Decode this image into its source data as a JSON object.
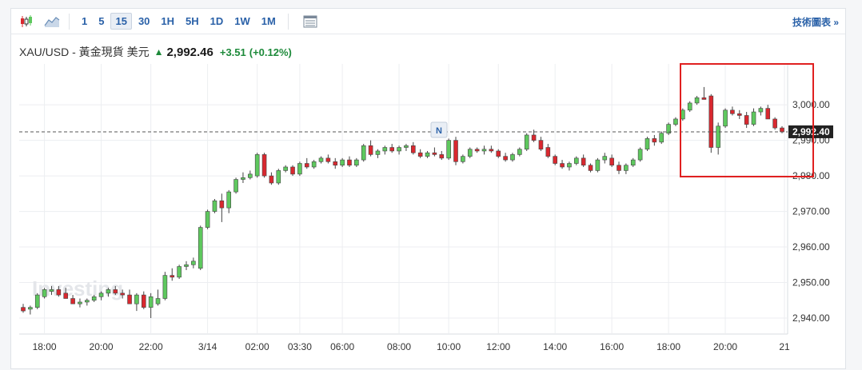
{
  "toolbar": {
    "timeframes": [
      "1",
      "5",
      "15",
      "30",
      "1H",
      "5H",
      "1D",
      "1W",
      "1M"
    ],
    "active_timeframe": "15",
    "tech_chart_link": "技術圖表 »"
  },
  "instrument": {
    "name": "XAU/USD - 黃金現貨 美元",
    "price": "2,992.46",
    "change": "+3.51",
    "change_pct": "(+0.12%)"
  },
  "watermark": "Investing",
  "news_marker": "N",
  "colors": {
    "up": "#5ec85e",
    "down": "#d9282f",
    "grid": "#eceef1",
    "highlight_box": "#e02020",
    "link": "#2a61a8",
    "positive": "#1d8a3a"
  },
  "chart_data": {
    "type": "candlestick",
    "title": "",
    "xlabel": "",
    "ylabel": "",
    "x_ticks": [
      "18:00",
      "20:00",
      "22:00",
      "3/14",
      "02:00",
      "03:30",
      "06:00",
      "08:00",
      "10:00",
      "12:00",
      "14:00",
      "16:00",
      "18:00",
      "20:00",
      "21"
    ],
    "y_ticks": [
      "2,940.00",
      "2,950.00",
      "2,960.00",
      "2,970.00",
      "2,980.00",
      "2,990.00",
      "3,000.00"
    ],
    "ylim": [
      2935.5,
      3011.5
    ],
    "last_price_label": "2,992.40",
    "last_price": 2992.4,
    "grid": true,
    "candles": [
      [
        2943,
        2944,
        2941.5,
        2942
      ],
      [
        2942.5,
        2943.5,
        2941,
        2943
      ],
      [
        2943,
        2947,
        2942.5,
        2946.5
      ],
      [
        2946,
        2948.5,
        2945.5,
        2948
      ],
      [
        2947.5,
        2949,
        2946.5,
        2948
      ],
      [
        2948,
        2949,
        2946,
        2946.5
      ],
      [
        2947,
        2948.5,
        2945.5,
        2945.5
      ],
      [
        2945.5,
        2946.5,
        2944,
        2944
      ],
      [
        2944,
        2945.5,
        2943,
        2944.5
      ],
      [
        2944.5,
        2945.5,
        2943.5,
        2945
      ],
      [
        2945,
        2946.5,
        2944.5,
        2946
      ],
      [
        2946,
        2947.5,
        2945,
        2947
      ],
      [
        2947,
        2948.5,
        2946,
        2948
      ],
      [
        2948,
        2949,
        2946.5,
        2947
      ],
      [
        2947,
        2948,
        2945.5,
        2946.5
      ],
      [
        2946.5,
        2948,
        2944,
        2944
      ],
      [
        2944,
        2947,
        2942,
        2946.5
      ],
      [
        2946.5,
        2947.5,
        2942.5,
        2943
      ],
      [
        2943,
        2947,
        2940,
        2946
      ],
      [
        2944,
        2948,
        2943.5,
        2945.5
      ],
      [
        2945.5,
        2953,
        2945,
        2952
      ],
      [
        2952,
        2954,
        2950.5,
        2951.5
      ],
      [
        2951.5,
        2955,
        2951,
        2954.5
      ],
      [
        2954.5,
        2956,
        2953.5,
        2955
      ],
      [
        2955,
        2957,
        2954,
        2956
      ],
      [
        2954,
        2966,
        2953.5,
        2965.5
      ],
      [
        2965.5,
        2970.5,
        2965,
        2970
      ],
      [
        2970,
        2973.5,
        2969.5,
        2973
      ],
      [
        2973,
        2975,
        2967,
        2971
      ],
      [
        2971,
        2976,
        2969.5,
        2975.5
      ],
      [
        2975.5,
        2979.5,
        2975,
        2979
      ],
      [
        2979,
        2981,
        2978,
        2979.5
      ],
      [
        2979.5,
        2981.5,
        2979,
        2980.5
      ],
      [
        2980,
        2986.5,
        2979.5,
        2986
      ],
      [
        2986,
        2986.5,
        2979.5,
        2980
      ],
      [
        2980,
        2981,
        2977.5,
        2978
      ],
      [
        2978,
        2982,
        2977.5,
        2981.5
      ],
      [
        2981.5,
        2983,
        2981,
        2982.5
      ],
      [
        2982.5,
        2983,
        2980,
        2980.5
      ],
      [
        2980.5,
        2984,
        2980,
        2983.5
      ],
      [
        2983.5,
        2985,
        2982,
        2982.5
      ],
      [
        2982.5,
        2984.5,
        2982,
        2984
      ],
      [
        2984,
        2985.5,
        2983.5,
        2985
      ],
      [
        2985,
        2986,
        2983.5,
        2984
      ],
      [
        2984,
        2985,
        2982,
        2983
      ],
      [
        2983,
        2985,
        2982.5,
        2984.5
      ],
      [
        2984.5,
        2985.5,
        2982.5,
        2983
      ],
      [
        2983,
        2985,
        2982.5,
        2984.5
      ],
      [
        2984.5,
        2989,
        2984,
        2988.5
      ],
      [
        2988.5,
        2990,
        2985.5,
        2986
      ],
      [
        2986,
        2987.5,
        2985,
        2987
      ],
      [
        2987,
        2988.5,
        2986,
        2988
      ],
      [
        2988,
        2989,
        2986.5,
        2987
      ],
      [
        2987,
        2988.5,
        2986,
        2988
      ],
      [
        2988,
        2989,
        2987,
        2988.5
      ],
      [
        2988.5,
        2989.5,
        2986,
        2986.5
      ],
      [
        2986.5,
        2987.5,
        2985,
        2985.5
      ],
      [
        2985.5,
        2987,
        2985,
        2986.5
      ],
      [
        2986.5,
        2988,
        2985.5,
        2986
      ],
      [
        2986,
        2987,
        2984.5,
        2985
      ],
      [
        2985,
        2990.5,
        2984.5,
        2990
      ],
      [
        2990,
        2991,
        2983,
        2984
      ],
      [
        2984,
        2986,
        2983.5,
        2985.5
      ],
      [
        2985.5,
        2988,
        2985,
        2987.5
      ],
      [
        2987.5,
        2988,
        2986.5,
        2987
      ],
      [
        2987,
        2988.5,
        2986,
        2987.5
      ],
      [
        2987.5,
        2988.5,
        2986.5,
        2987
      ],
      [
        2987,
        2987.5,
        2985,
        2985.5
      ],
      [
        2985.5,
        2986.5,
        2984,
        2984.5
      ],
      [
        2984.5,
        2986.5,
        2984,
        2986
      ],
      [
        2986,
        2988,
        2985.5,
        2987.5
      ],
      [
        2987.5,
        2992,
        2987,
        2991.5
      ],
      [
        2991.5,
        2993,
        2989.5,
        2990
      ],
      [
        2990,
        2991,
        2987,
        2987.5
      ],
      [
        2988,
        2989,
        2985,
        2985.5
      ],
      [
        2985.5,
        2986,
        2983,
        2983.5
      ],
      [
        2983.5,
        2984.5,
        2982,
        2982.5
      ],
      [
        2982.5,
        2984,
        2981.5,
        2983.5
      ],
      [
        2983.5,
        2985.5,
        2983,
        2985
      ],
      [
        2985,
        2986,
        2982.5,
        2983
      ],
      [
        2983,
        2983.5,
        2981,
        2981.5
      ],
      [
        2981.5,
        2985,
        2981,
        2984.5
      ],
      [
        2984.5,
        2986.5,
        2983.5,
        2985.5
      ],
      [
        2985,
        2986,
        2982.5,
        2983
      ],
      [
        2983,
        2984,
        2980.5,
        2981.5
      ],
      [
        2981.5,
        2983.5,
        2980.5,
        2983
      ],
      [
        2983,
        2985,
        2982.5,
        2984.5
      ],
      [
        2984.5,
        2988,
        2984,
        2987.5
      ],
      [
        2987.5,
        2991,
        2987,
        2990.5
      ],
      [
        2990.5,
        2991.5,
        2988.5,
        2989.5
      ],
      [
        2989.5,
        2992.5,
        2989,
        2992
      ],
      [
        2992,
        2995,
        2991.5,
        2994.5
      ],
      [
        2994.5,
        2996.5,
        2994,
        2996
      ],
      [
        2996,
        2999,
        2995.5,
        2998.5
      ],
      [
        2998.5,
        3001,
        2998,
        3000.5
      ],
      [
        3000.5,
        3002.5,
        3000,
        3002
      ],
      [
        3002,
        3005,
        3001.5,
        3001.5
      ],
      [
        3002.5,
        3003,
        2986.5,
        2988
      ],
      [
        2988,
        2995,
        2986,
        2994
      ],
      [
        2994,
        2999,
        2993.5,
        2998.5
      ],
      [
        2998.5,
        2999.5,
        2997,
        2997.5
      ],
      [
        2997.5,
        2998.5,
        2996,
        2997
      ],
      [
        2997,
        2998,
        2993.5,
        2994.5
      ],
      [
        2994.5,
        2999,
        2994,
        2998
      ],
      [
        2998,
        2999.5,
        2997,
        2999
      ],
      [
        2999,
        3000,
        2996,
        2996
      ],
      [
        2996,
        2996.5,
        2993,
        2993.5
      ],
      [
        2993.5,
        2994,
        2992,
        2992.4
      ]
    ]
  }
}
